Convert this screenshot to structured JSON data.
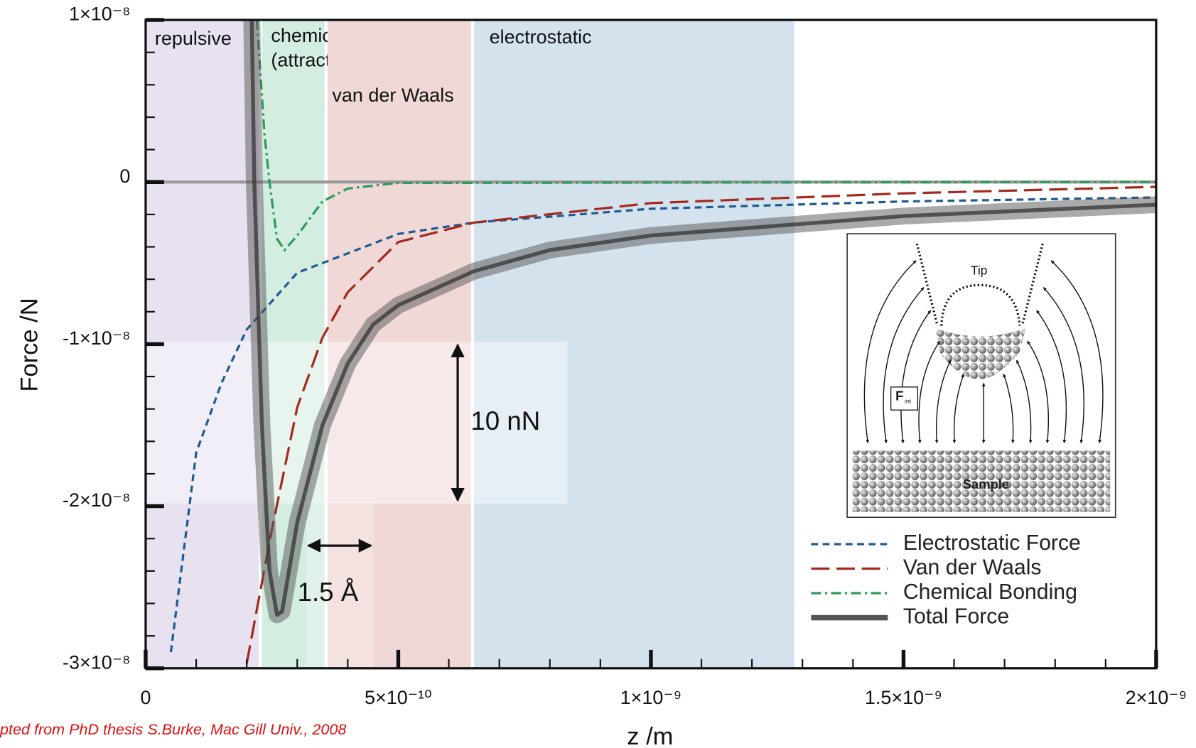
{
  "chart_data": {
    "type": "line",
    "xlabel": "z /m",
    "ylabel": "Force /N",
    "xlim": [
      0,
      2e-09
    ],
    "ylim": [
      -3e-08,
      1e-08
    ],
    "xticks": [
      0,
      {
        "value": 5e-10,
        "label": "5×10⁻¹⁰"
      },
      {
        "value": 1e-09,
        "label": "1×10⁻⁹"
      },
      {
        "value": 1.5e-09,
        "label": "1.5×10⁻⁹"
      },
      {
        "value": 2e-09,
        "label": "2×10⁻⁹"
      }
    ],
    "yticks": [
      {
        "value": 1e-08,
        "label": "1×10⁻⁸"
      },
      0,
      {
        "value": -1e-08,
        "label": "-1×10⁻⁸"
      },
      {
        "value": -2e-08,
        "label": "-2×10⁻⁸"
      },
      {
        "value": -3e-08,
        "label": "-3×10⁻⁸"
      }
    ],
    "regions": [
      {
        "label": [
          "repulsive"
        ],
        "range": [
          0,
          2.3e-10
        ],
        "color": "#e7e1f0"
      },
      {
        "label": [
          "chemical",
          "(attractive)"
        ],
        "range": [
          2.3e-10,
          3.6e-10
        ],
        "color": "#d4ede1"
      },
      {
        "label": [
          "van der Waals"
        ],
        "range": [
          3.6e-10,
          6.5e-10
        ],
        "color": "#f0d8d7"
      },
      {
        "label": [
          "electrostatic"
        ],
        "range": [
          6.5e-10,
          1.29e-09
        ],
        "color": "#d4e2ee"
      }
    ],
    "series": [
      {
        "name": "Electrostatic Force",
        "color": "#1f5b91",
        "x": [
          5e-11,
          1e-10,
          1.5e-10,
          2e-10,
          3e-10,
          4e-10,
          5e-10,
          6.5e-10,
          1e-09,
          1.5e-09,
          2e-09
        ],
        "values": [
          -2.9e-08,
          -1.67e-08,
          -1.24e-08,
          -9.1e-09,
          -5.6e-09,
          -4.4e-09,
          -3.2e-09,
          -2.5e-09,
          -1.65e-09,
          -1.2e-09,
          -9.5e-10
        ]
      },
      {
        "name": "Van der Waals",
        "color": "#a52a1e",
        "x": [
          2e-10,
          2.5e-10,
          3e-10,
          3.5e-10,
          4e-10,
          5e-10,
          6.5e-10,
          1e-09,
          1.5e-09,
          2e-09
        ],
        "values": [
          -2.97e-08,
          -2.14e-08,
          -1.39e-08,
          -9.6e-09,
          -6.8e-09,
          -3.7e-09,
          -2.5e-09,
          -1.3e-09,
          -7e-10,
          -3e-10
        ]
      },
      {
        "name": "Chemical Bonding",
        "color": "#2e9b5c",
        "x": [
          2.2e-10,
          2.35e-10,
          2.45e-10,
          2.6e-10,
          2.75e-10,
          3e-10,
          3.5e-10,
          4e-10,
          5e-10,
          2e-09
        ],
        "values": [
          1e-08,
          3e-09,
          0,
          -3.5e-09,
          -4.2e-09,
          -3.3e-09,
          -1.2e-09,
          -4e-10,
          -5e-11,
          0
        ]
      },
      {
        "name": "Total Force",
        "color": "#555555",
        "x": [
          2.1e-10,
          2.15e-10,
          2.3e-10,
          2.45e-10,
          2.6e-10,
          2.7e-10,
          3e-10,
          3.5e-10,
          4e-10,
          4.5e-10,
          5e-10,
          6.5e-10,
          8e-10,
          1e-09,
          1.5e-09,
          2e-09
        ],
        "values": [
          1e-08,
          0,
          -1.5e-08,
          -2.4e-08,
          -2.67e-08,
          -2.65e-08,
          -2.1e-08,
          -1.5e-08,
          -1.12e-08,
          -8.8e-09,
          -7.6e-09,
          -5.5e-09,
          -4.2e-09,
          -3.3e-09,
          -2.1e-09,
          -1.4e-09
        ]
      }
    ],
    "annotations": [
      "10 nN",
      "1.5 Å"
    ],
    "credit": "pted from PhD thesis S.Burke, Mac Gill Univ., 2008",
    "inset": {
      "tip": "Tip",
      "force": "F",
      "force_sub": "int",
      "sample": "Sample"
    }
  }
}
